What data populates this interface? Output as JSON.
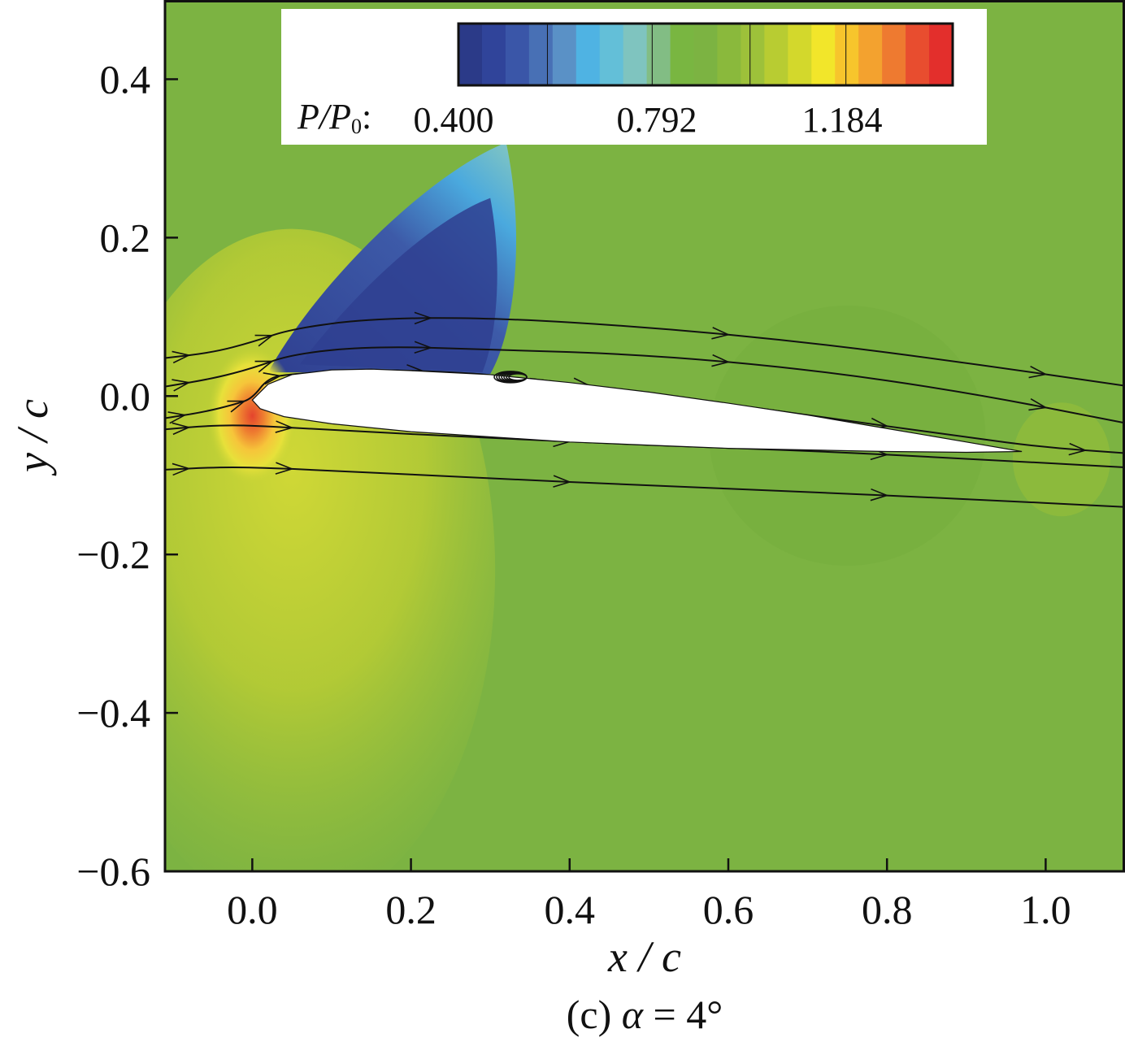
{
  "chart_data": {
    "type": "heatmap",
    "description_kind": "contour",
    "xlabel": "x / c",
    "ylabel": "y / c",
    "xlim": [
      -0.11,
      1.1
    ],
    "ylim": [
      -0.6,
      0.5
    ],
    "x_ticks": [
      0.0,
      0.2,
      0.4,
      0.6,
      0.8,
      1.0
    ],
    "x_tick_labels": [
      "0.0",
      "0.2",
      "0.4",
      "0.6",
      "0.8",
      "1.0"
    ],
    "y_ticks": [
      0.4,
      0.2,
      0.0,
      -0.2,
      -0.4,
      -0.6
    ],
    "y_tick_labels": [
      "0.4",
      "0.2",
      "0.0",
      "−0.2",
      "−0.4",
      "−0.6"
    ],
    "caption": {
      "prefix": "(c) ",
      "symbol": "α",
      "suffix": " = 4°"
    },
    "colorbar": {
      "title_main": "P/P",
      "title_sub": "0",
      "title_colon": ":",
      "min": 0.4,
      "max": 1.4,
      "tick_values": [
        0.4,
        0.792,
        1.184
      ],
      "tick_labels": [
        "0.400",
        "0.792",
        "1.184"
      ],
      "colors": [
        "#2b3a88",
        "#30449a",
        "#3a56a8",
        "#4870b5",
        "#5a91c6",
        "#4fb3e3",
        "#63bfd8",
        "#7fc4bf",
        "#82bd84",
        "#79b641",
        "#7cb342",
        "#8ab93c",
        "#9dc13a",
        "#b8cc32",
        "#d3d82c",
        "#f2e62a",
        "#f7c52c",
        "#f3a22f",
        "#ee7a30",
        "#e84d2f",
        "#e32f2c"
      ]
    },
    "background_color": "#7cb342",
    "regions": [
      {
        "name": "freestream",
        "color": "#7cb342"
      },
      {
        "name": "upper-suction",
        "color": "#2f3f90"
      },
      {
        "name": "stagnation-point",
        "color": "#ef7d2f"
      },
      {
        "name": "lower-surface",
        "color": "#a9c83a"
      }
    ],
    "streamlines": [
      {
        "x": [
          -0.11,
          -0.05,
          0.0,
          0.05,
          0.15,
          0.3,
          0.5,
          0.7,
          0.9,
          1.1
        ],
        "y": [
          0.048,
          0.055,
          0.068,
          0.085,
          0.098,
          0.099,
          0.087,
          0.068,
          0.042,
          0.013
        ]
      },
      {
        "x": [
          -0.11,
          -0.05,
          0.0,
          0.05,
          0.15,
          0.3,
          0.5,
          0.7,
          0.9,
          1.1
        ],
        "y": [
          0.012,
          0.022,
          0.035,
          0.053,
          0.063,
          0.059,
          0.052,
          0.034,
          0.005,
          -0.034
        ]
      },
      {
        "x": [
          -0.11,
          -0.06,
          -0.02,
          0.0,
          0.02,
          0.05,
          0.15,
          0.28,
          0.32
        ],
        "y": [
          -0.028,
          -0.02,
          -0.01,
          -0.003,
          0.023,
          0.028,
          0.034,
          0.029,
          0.024
        ]
      },
      {
        "x": [
          0.35,
          0.5,
          0.7,
          0.9,
          1.0,
          1.1
        ],
        "y": [
          0.022,
          0.004,
          -0.024,
          -0.052,
          -0.065,
          -0.072
        ]
      },
      {
        "x": [
          -0.11,
          -0.05,
          0.0,
          0.1,
          0.3,
          0.5,
          0.7,
          0.9,
          1.1
        ],
        "y": [
          -0.042,
          -0.037,
          -0.037,
          -0.043,
          -0.053,
          -0.062,
          -0.069,
          -0.079,
          -0.09
        ]
      },
      {
        "x": [
          -0.11,
          -0.05,
          0.0,
          0.1,
          0.3,
          0.5,
          0.7,
          0.9,
          1.1
        ],
        "y": [
          -0.093,
          -0.09,
          -0.09,
          -0.094,
          -0.104,
          -0.113,
          -0.121,
          -0.13,
          -0.14
        ]
      }
    ],
    "airfoil": {
      "upper": {
        "x": [
          0.0,
          0.02,
          0.05,
          0.1,
          0.15,
          0.2,
          0.3,
          0.4,
          0.5,
          0.6,
          0.7,
          0.8,
          0.9,
          0.97
        ],
        "y": [
          -0.005,
          0.015,
          0.027,
          0.033,
          0.034,
          0.032,
          0.027,
          0.017,
          0.005,
          -0.009,
          -0.024,
          -0.041,
          -0.058,
          -0.07
        ]
      },
      "lower": {
        "x": [
          0.97,
          0.9,
          0.8,
          0.6,
          0.4,
          0.2,
          0.1,
          0.04,
          0.01,
          0.0
        ],
        "y": [
          -0.07,
          -0.071,
          -0.07,
          -0.066,
          -0.058,
          -0.045,
          -0.035,
          -0.026,
          -0.016,
          -0.005
        ]
      }
    },
    "vortex": {
      "x": 0.33,
      "y": 0.024
    }
  }
}
